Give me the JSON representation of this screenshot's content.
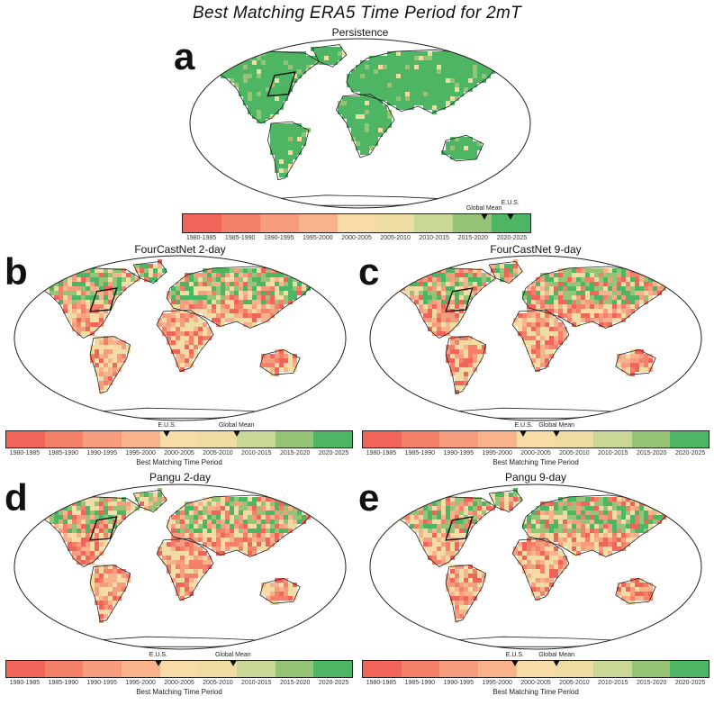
{
  "title": "Best Matching ERA5 Time Period for 2mT",
  "colorbar": {
    "categories": [
      "1980-1985",
      "1985-1990",
      "1990-1995",
      "1995-2000",
      "2000-2005",
      "2005-2010",
      "2010-2015",
      "2015-2020",
      "2020-2025"
    ],
    "colors": [
      "#f0645a",
      "#f4806a",
      "#f79d7f",
      "#f9b38c",
      "#f8dca8",
      "#eedca2",
      "#c9d897",
      "#96c477",
      "#4db563"
    ],
    "xlabel": "Best Matching Time Period",
    "marker_labels": {
      "eus": "E.U.S.",
      "global": "Global Mean"
    }
  },
  "panels": [
    {
      "letter": "a",
      "title": "Persistence",
      "eus_position": 0.94,
      "global_position": 0.865,
      "show_xlabel": false
    },
    {
      "letter": "b",
      "title": "FourCastNet 2-day",
      "eus_position": 0.465,
      "global_position": 0.665,
      "show_xlabel": true
    },
    {
      "letter": "c",
      "title": "FourCastNet 9-day",
      "eus_position": 0.465,
      "global_position": 0.56,
      "show_xlabel": true
    },
    {
      "letter": "d",
      "title": "Pangu 2-day",
      "eus_position": 0.44,
      "global_position": 0.655,
      "show_xlabel": true
    },
    {
      "letter": "e",
      "title": "Pangu 9-day",
      "eus_position": 0.44,
      "global_position": 0.56,
      "show_xlabel": true
    }
  ]
}
